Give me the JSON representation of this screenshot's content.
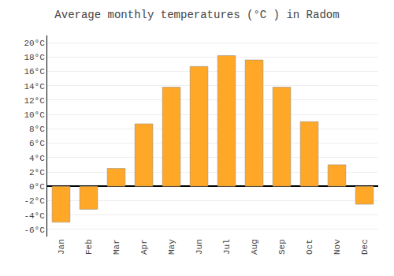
{
  "chart_data": {
    "type": "bar",
    "title": "Average monthly temperatures (°C ) in Radom",
    "categories": [
      "Jan",
      "Feb",
      "Mar",
      "Apr",
      "May",
      "Jun",
      "Jul",
      "Aug",
      "Sep",
      "Oct",
      "Nov",
      "Dec"
    ],
    "values": [
      -5.0,
      -3.2,
      2.5,
      8.7,
      13.8,
      16.7,
      18.2,
      17.6,
      13.8,
      9.0,
      3.0,
      -2.5
    ],
    "color": "#FFA726",
    "ylim": [
      -7,
      21
    ],
    "yticks": [
      {
        "value": -6,
        "label": "-6°C"
      },
      {
        "value": -4,
        "label": "-4°C"
      },
      {
        "value": -2,
        "label": "-2°C"
      },
      {
        "value": 0,
        "label": "0°C"
      },
      {
        "value": 2,
        "label": "2°C"
      },
      {
        "value": 4,
        "label": "4°C"
      },
      {
        "value": 6,
        "label": "6°C"
      },
      {
        "value": 8,
        "label": "8°C"
      },
      {
        "value": 10,
        "label": "10°C"
      },
      {
        "value": 12,
        "label": "12°C"
      },
      {
        "value": 14,
        "label": "14°C"
      },
      {
        "value": 16,
        "label": "16°C"
      },
      {
        "value": 18,
        "label": "18°C"
      },
      {
        "value": 20,
        "label": "20°C"
      }
    ],
    "grid": true
  }
}
